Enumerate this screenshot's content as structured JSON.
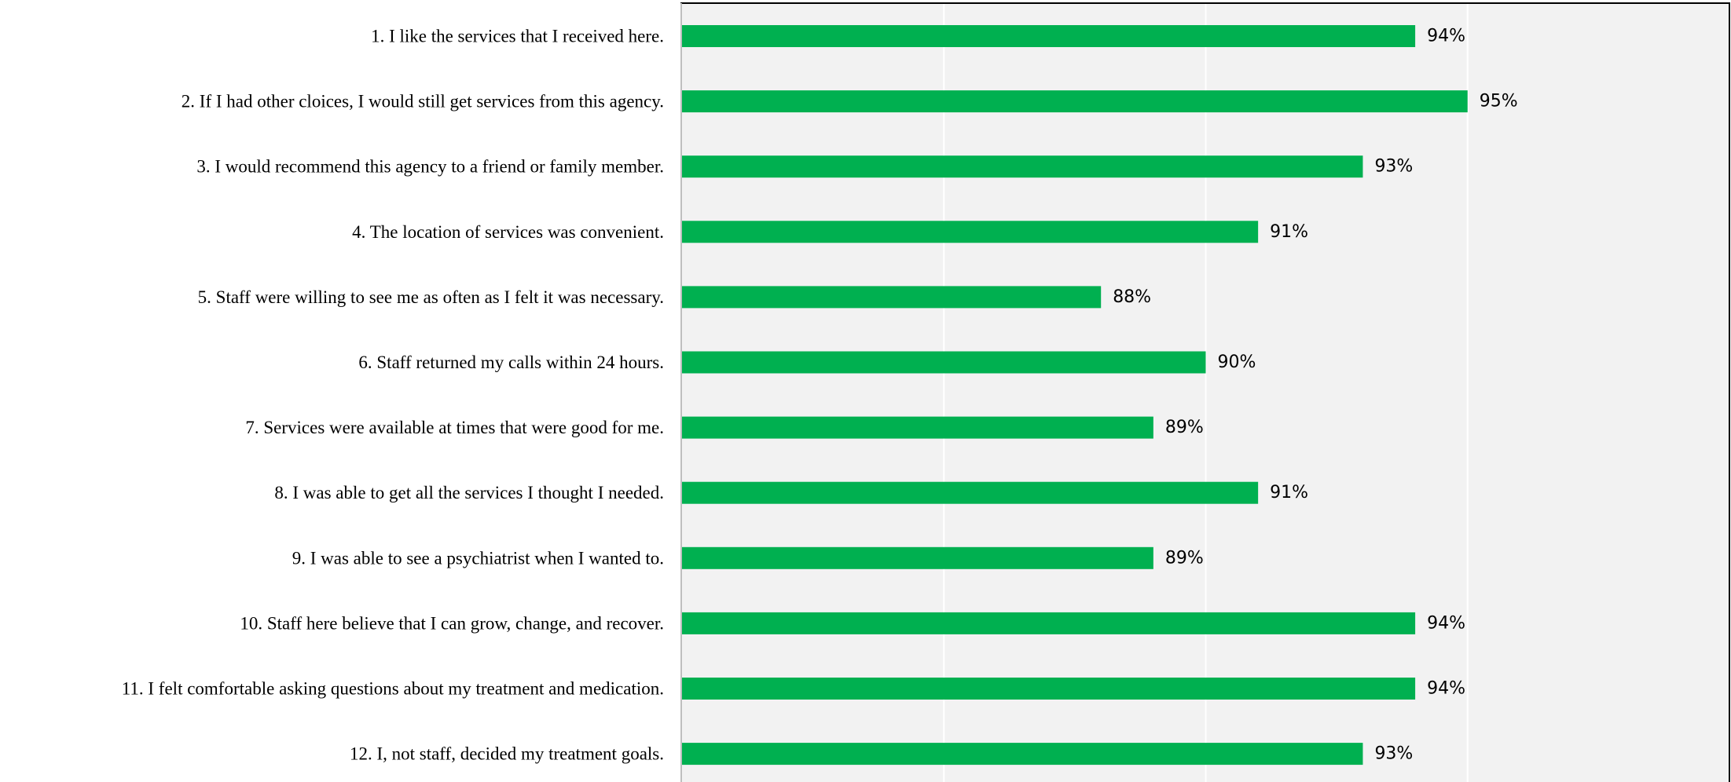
{
  "chart_data": {
    "type": "bar",
    "orientation": "horizontal",
    "categories": [
      "1. I like the services that I received here.",
      "2. If I had other cloices, I would still get services from this agency.",
      "3. I would recommend this agency to a friend or family member.",
      "4. The location of services was convenient.",
      "5. Staff were willing to see me as often as I felt it was necessary.",
      "6. Staff returned my calls within 24 hours.",
      "7. Services were available at times that were good for me.",
      "8. I was able to get all the services I thought I needed.",
      "9. I was able to see a psychiatrist when I wanted to.",
      "10. Staff here believe that I can grow, change, and recover.",
      "11. I felt comfortable asking questions about my treatment and medication.",
      "12. I, not staff, decided my treatment goals."
    ],
    "values": [
      94,
      95,
      93,
      91,
      88,
      90,
      89,
      91,
      89,
      94,
      94,
      93
    ],
    "value_labels": [
      "94%",
      "95%",
      "93%",
      "91%",
      "88%",
      "90%",
      "89%",
      "91%",
      "89%",
      "94%",
      "94%",
      "93%"
    ],
    "xlim": [
      80,
      100
    ],
    "grid": true,
    "bar_color": "#00b050",
    "plot_background": "#f2f2f2",
    "gridline_color": "#ffffff"
  }
}
